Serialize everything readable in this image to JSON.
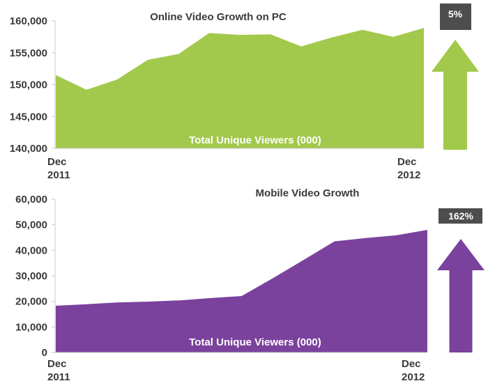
{
  "chart_data": [
    {
      "type": "area",
      "title": "Online Video Growth on PC",
      "inner_label": "Total Unique Viewers (000)",
      "x_tick_labels": [
        [
          "Dec",
          "2011"
        ],
        [
          "Dec",
          "2012"
        ]
      ],
      "y_ticks": [
        "140,000",
        "145,000",
        "150,000",
        "155,000",
        "160,000"
      ],
      "ylim": [
        140000,
        160000
      ],
      "values": [
        151500,
        149200,
        150800,
        153900,
        154800,
        158100,
        157800,
        157900,
        156000,
        157400,
        158600,
        157500,
        158900
      ],
      "growth_label": "5%",
      "color": "#a2c94c",
      "badge_color": "#4d4d4d"
    },
    {
      "type": "area",
      "title": "Mobile Video Growth",
      "inner_label": "Total Unique Viewers (000)",
      "x_tick_labels": [
        [
          "Dec",
          "2011"
        ],
        [
          "Dec",
          "2012"
        ]
      ],
      "y_ticks": [
        "0",
        "10,000",
        "20,000",
        "30,000",
        "40,000",
        "50,000",
        "60,000"
      ],
      "ylim": [
        0,
        60000
      ],
      "values": [
        18300,
        18900,
        19600,
        19900,
        20400,
        21300,
        22100,
        29000,
        36200,
        43500,
        44800,
        45900,
        48000
      ],
      "growth_label": "162%",
      "color": "#7b429d",
      "badge_color": "#4d4d4d"
    }
  ]
}
